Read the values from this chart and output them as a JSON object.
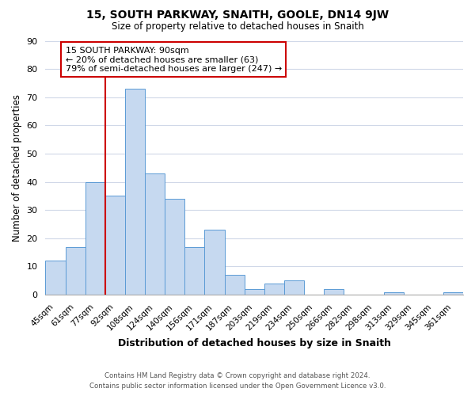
{
  "title": "15, SOUTH PARKWAY, SNAITH, GOOLE, DN14 9JW",
  "subtitle": "Size of property relative to detached houses in Snaith",
  "xlabel": "Distribution of detached houses by size in Snaith",
  "ylabel": "Number of detached properties",
  "bar_labels": [
    "45sqm",
    "61sqm",
    "77sqm",
    "92sqm",
    "108sqm",
    "124sqm",
    "140sqm",
    "156sqm",
    "171sqm",
    "187sqm",
    "203sqm",
    "219sqm",
    "234sqm",
    "250sqm",
    "266sqm",
    "282sqm",
    "298sqm",
    "313sqm",
    "329sqm",
    "345sqm",
    "361sqm"
  ],
  "bar_values": [
    12,
    17,
    40,
    35,
    73,
    43,
    34,
    17,
    23,
    7,
    2,
    4,
    5,
    0,
    2,
    0,
    0,
    1,
    0,
    0,
    1
  ],
  "bar_color": "#c6d9f0",
  "bar_edge_color": "#5b9bd5",
  "vline_x_index": 3,
  "vline_color": "#cc0000",
  "ylim": [
    0,
    90
  ],
  "yticks": [
    0,
    10,
    20,
    30,
    40,
    50,
    60,
    70,
    80,
    90
  ],
  "annotation_text": "15 SOUTH PARKWAY: 90sqm\n← 20% of detached houses are smaller (63)\n79% of semi-detached houses are larger (247) →",
  "annotation_box_color": "#ffffff",
  "annotation_box_edge": "#cc0000",
  "footer_line1": "Contains HM Land Registry data © Crown copyright and database right 2024.",
  "footer_line2": "Contains public sector information licensed under the Open Government Licence v3.0.",
  "background_color": "#ffffff",
  "grid_color": "#d0d8e8"
}
